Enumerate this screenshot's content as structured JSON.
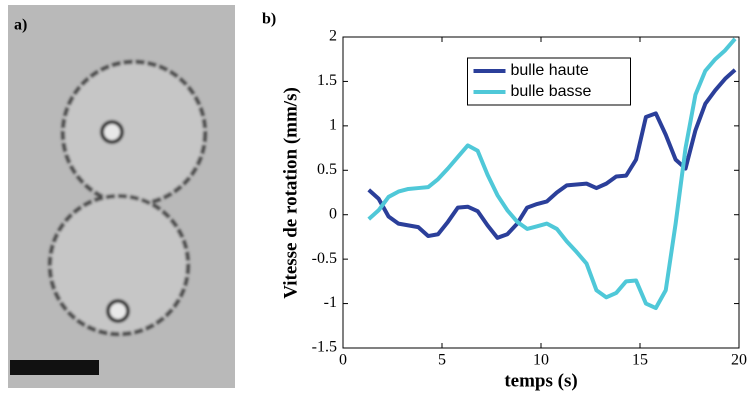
{
  "panel_labels": [
    "a)",
    "b)"
  ],
  "chart_data": {
    "type": "line",
    "xlabel": "temps (s)",
    "ylabel": "Vitesse de rotation (mm/s)",
    "x": [
      1.3,
      1.8,
      2.3,
      2.8,
      3.3,
      3.8,
      4.3,
      4.8,
      5.3,
      5.8,
      6.3,
      6.8,
      7.3,
      7.8,
      8.3,
      8.8,
      9.3,
      9.8,
      10.3,
      10.8,
      11.3,
      11.8,
      12.3,
      12.8,
      13.3,
      13.8,
      14.3,
      14.8,
      15.3,
      15.8,
      16.3,
      16.8,
      17.3,
      17.8,
      18.3,
      18.8,
      19.3,
      19.8
    ],
    "series": [
      {
        "name": "bulle haute",
        "color": "#2b3f9a",
        "values": [
          0.28,
          0.18,
          -0.02,
          -0.1,
          -0.12,
          -0.14,
          -0.24,
          -0.22,
          -0.08,
          0.08,
          0.09,
          0.04,
          -0.12,
          -0.26,
          -0.22,
          -0.1,
          0.08,
          0.12,
          0.15,
          0.25,
          0.33,
          0.34,
          0.35,
          0.3,
          0.35,
          0.43,
          0.44,
          0.62,
          1.1,
          1.14,
          0.9,
          0.62,
          0.52,
          0.95,
          1.25,
          1.4,
          1.53,
          1.63
        ]
      },
      {
        "name": "bulle basse",
        "color": "#4fc8d8",
        "values": [
          -0.05,
          0.05,
          0.2,
          0.26,
          0.29,
          0.3,
          0.31,
          0.4,
          0.52,
          0.65,
          0.78,
          0.72,
          0.45,
          0.22,
          0.05,
          -0.08,
          -0.16,
          -0.13,
          -0.1,
          -0.16,
          -0.3,
          -0.42,
          -0.55,
          -0.85,
          -0.93,
          -0.88,
          -0.75,
          -0.74,
          -1.0,
          -1.05,
          -0.85,
          -0.1,
          0.75,
          1.35,
          1.62,
          1.75,
          1.85,
          1.98
        ]
      }
    ],
    "xlim": [
      0,
      20
    ],
    "xticks": [
      0,
      5,
      10,
      15,
      20
    ],
    "ylim": [
      -1.5,
      2
    ],
    "yticks": [
      -1.5,
      -1,
      -0.5,
      0,
      0.5,
      1,
      1.5,
      2
    ],
    "legend": "upper center",
    "grid": false
  }
}
